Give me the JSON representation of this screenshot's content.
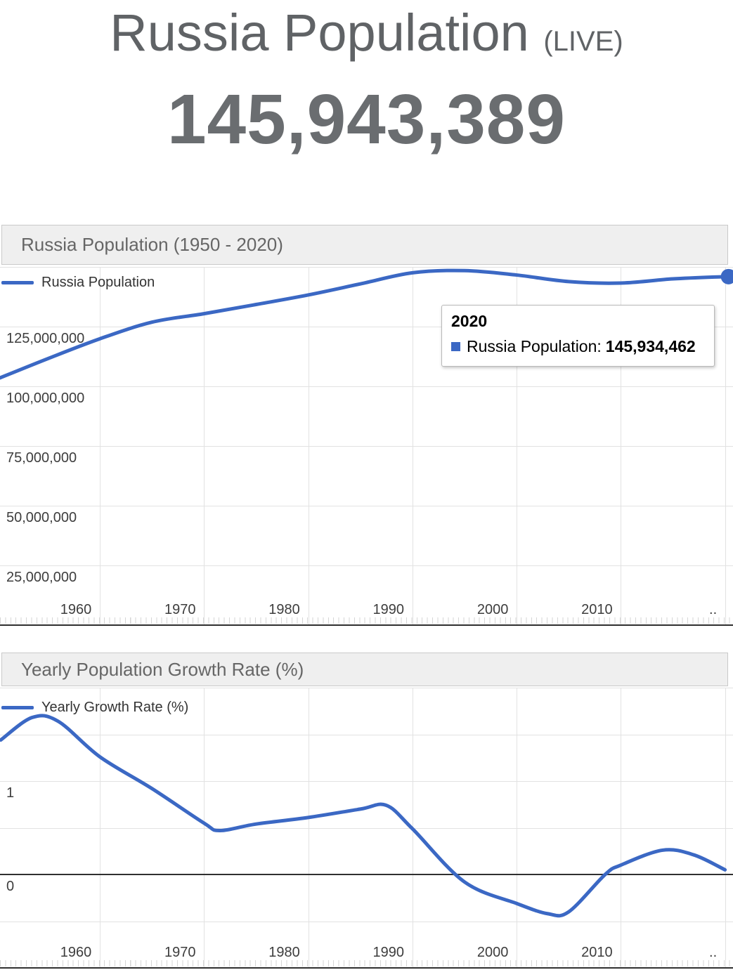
{
  "page": {
    "title": "Russia Population",
    "live_suffix": "(LIVE)",
    "live_counter": "145,943,389"
  },
  "population_chart": {
    "header": "Russia Population (1950 - 2020)"
  },
  "growth_chart": {
    "header": "Yearly Population Growth Rate (%)"
  },
  "colors": {
    "series_blue": "#3b68c4",
    "header_text": "#666666",
    "counter_gray": "#6a6d70",
    "gridline": "#e2e2e2",
    "axis": "#2f2f2f"
  },
  "chart_data": [
    {
      "type": "line",
      "title": "Russia Population (1950 - 2020)",
      "legend": "Russia Population",
      "legend_position": "top-left-inside",
      "grid": true,
      "x": [
        1950,
        1955,
        1960,
        1965,
        1970,
        1975,
        1980,
        1985,
        1990,
        1995,
        2000,
        2005,
        2010,
        2015,
        2020
      ],
      "series": [
        {
          "name": "Russia Population",
          "values": [
            102799000,
            111572000,
            119897000,
            126850000,
            130404000,
            134263000,
            138257000,
            142888000,
            147532000,
            148454000,
            146597000,
            143847000,
            143243000,
            144985000,
            145934462
          ]
        }
      ],
      "xlim": [
        1950,
        2021
      ],
      "ylim": [
        0,
        151000000
      ],
      "y_tick_values": [
        25000000,
        50000000,
        75000000,
        100000000,
        125000000
      ],
      "y_tick_labels": [
        "25,000,000",
        "50,000,000",
        "75,000,000",
        "100,000,000",
        "125,000,000"
      ],
      "x_tick_labels": [
        "1960",
        "1970",
        "1980",
        "1990",
        "2000",
        "2010",
        ".."
      ],
      "end_marker": {
        "x": 2020,
        "y": 145934462
      },
      "tooltip": {
        "title": "2020",
        "series_label": "Russia Population:",
        "value": "145,934,462"
      }
    },
    {
      "type": "line",
      "title": "Yearly Population Growth Rate (%)",
      "legend": "Yearly Growth Rate (%)",
      "legend_position": "top-left-inside",
      "grid": true,
      "x": [
        1950.5,
        1953.5,
        1956,
        1960,
        1965,
        1970,
        1971.5,
        1975,
        1980,
        1985,
        1987.5,
        1990,
        1995,
        2000,
        2003,
        2005,
        2008.5,
        2010,
        2014,
        2017,
        2020
      ],
      "series": [
        {
          "name": "Yearly Growth Rate (%)",
          "values": [
            1.44,
            1.68,
            1.64,
            1.26,
            0.92,
            0.55,
            0.47,
            0.54,
            0.61,
            0.7,
            0.74,
            0.49,
            -0.08,
            -0.31,
            -0.42,
            -0.4,
            0.0,
            0.1,
            0.26,
            0.21,
            0.05
          ]
        }
      ],
      "xlim": [
        1950,
        2021
      ],
      "ylim": [
        -1,
        2
      ],
      "y_tick_values": [
        0,
        1
      ],
      "y_tick_labels": [
        "0",
        "1"
      ],
      "x_tick_labels": [
        "1960",
        "1970",
        "1980",
        "1990",
        "2000",
        "2010",
        ".."
      ],
      "zero_baseline": true
    }
  ]
}
